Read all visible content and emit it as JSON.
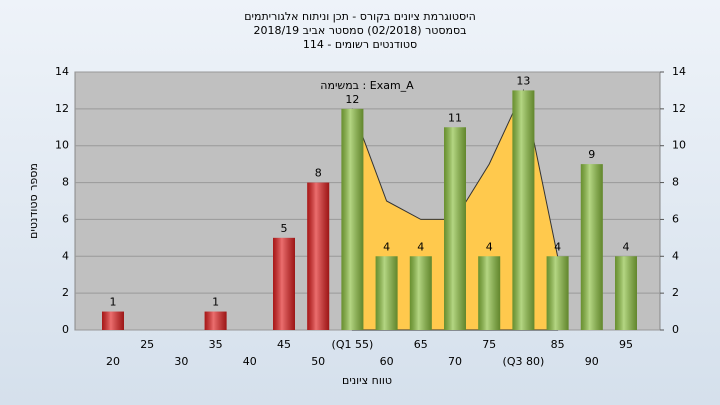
{
  "chart_data": {
    "type": "bar",
    "title": "היסטוגרמת ציונים בקורס - תכן וניתוח אלגוריתמים",
    "subtitle": "בסמסטר (02/2018)  סמסטר אביב 2018/19",
    "subtitle2": "סטודנטים רשומים - 114",
    "annotation": "במשימה : Exam_A",
    "x_label": "טווח ציונים",
    "y_label": "מספר סטודנטים",
    "categories": [
      "20",
      "25",
      "30",
      "35",
      "40",
      "45",
      "50",
      "(Q1 55)",
      "60",
      "65",
      "70",
      "75",
      "(Q3 80)",
      "85",
      "90",
      "95"
    ],
    "values": [
      1,
      0,
      0,
      1,
      0,
      5,
      8,
      12,
      4,
      4,
      11,
      4,
      13,
      4,
      9,
      4
    ],
    "colors": [
      "#e02020",
      "#e02020",
      "#e02020",
      "#e02020",
      "#e02020",
      "#e02020",
      "#e02020",
      "#8cc040",
      "#8cc040",
      "#8cc040",
      "#8cc040",
      "#8cc040",
      "#8cc040",
      "#8cc040",
      "#8cc040",
      "#8cc040"
    ],
    "area": {
      "color": "#ffc94d",
      "values": [
        null,
        null,
        null,
        null,
        null,
        null,
        null,
        12,
        7,
        6,
        6,
        9,
        13,
        4,
        null,
        null
      ]
    },
    "ylim": [
      0,
      14
    ],
    "yticks": [
      0,
      2,
      4,
      6,
      8,
      10,
      12,
      14
    ],
    "y2lim": [
      0,
      14
    ],
    "y2ticks": [
      0,
      2,
      4,
      6,
      8,
      10,
      12,
      14
    ]
  }
}
